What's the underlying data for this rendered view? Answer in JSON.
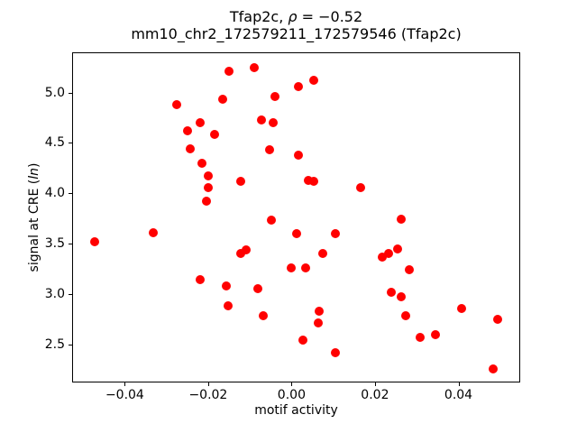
{
  "chart_data": {
    "type": "scatter",
    "title": "Tfap2c, ρ = −0.52",
    "title_parts": {
      "prefix": "Tfap2c, ",
      "rho": "ρ",
      "suffix": " = −0.52"
    },
    "subtitle": "mm10_chr2_172579211_172579546 (Tfap2c)",
    "xlabel": "motif activity",
    "ylabel": "signal at CRE (ln)",
    "ylabel_parts": {
      "prefix": "signal at CRE (",
      "italic": "ln",
      "suffix": ")"
    },
    "marker_color": "#ff0000",
    "marker_size_px": 10,
    "grid": false,
    "legend_position": "none",
    "xlim": [
      -0.0524,
      0.0546
    ],
    "ylim": [
      2.13,
      5.39
    ],
    "x_tick_values": [
      -0.04,
      -0.02,
      0.0,
      0.02,
      0.04
    ],
    "x_tick_labels": [
      "−0.04",
      "−0.02",
      "0.00",
      "0.02",
      "0.04"
    ],
    "y_tick_values": [
      2.5,
      3.0,
      3.5,
      4.0,
      4.5,
      5.0
    ],
    "y_tick_labels": [
      "2.5",
      "3.0",
      "3.5",
      "4.0",
      "4.5",
      "5.0"
    ],
    "points": [
      [
        -0.0151,
        5.21
      ],
      [
        -0.009,
        5.25
      ],
      [
        -0.0166,
        4.93
      ],
      [
        0.0017,
        5.06
      ],
      [
        -0.0039,
        4.96
      ],
      [
        -0.0276,
        4.88
      ],
      [
        -0.0073,
        4.73
      ],
      [
        -0.0045,
        4.7
      ],
      [
        -0.022,
        4.7
      ],
      [
        -0.025,
        4.62
      ],
      [
        -0.0184,
        4.58
      ],
      [
        -0.0243,
        4.44
      ],
      [
        -0.0052,
        4.43
      ],
      [
        0.0017,
        4.38
      ],
      [
        -0.0215,
        4.3
      ],
      [
        -0.0199,
        4.17
      ],
      [
        -0.0199,
        4.06
      ],
      [
        -0.0122,
        4.12
      ],
      [
        -0.0204,
        3.92
      ],
      [
        -0.0048,
        3.73
      ],
      [
        0.0054,
        5.12
      ],
      [
        0.004,
        4.13
      ],
      [
        0.0053,
        4.12
      ],
      [
        0.0165,
        4.06
      ],
      [
        0.0262,
        3.74
      ],
      [
        -0.0472,
        3.52
      ],
      [
        -0.0332,
        3.61
      ],
      [
        -0.0123,
        3.4
      ],
      [
        -0.0108,
        3.44
      ],
      [
        -0.0219,
        3.14
      ],
      [
        -0.0156,
        3.08
      ],
      [
        -0.0082,
        3.05
      ],
      [
        -0.0152,
        2.88
      ],
      [
        -0.0068,
        2.78
      ],
      [
        0.0013,
        3.6
      ],
      [
        0.0106,
        3.6
      ],
      [
        0.0074,
        3.4
      ],
      [
        -0.0001,
        3.26
      ],
      [
        0.0033,
        3.26
      ],
      [
        0.0217,
        3.37
      ],
      [
        0.0233,
        3.4
      ],
      [
        0.0253,
        3.45
      ],
      [
        0.0282,
        3.24
      ],
      [
        0.0238,
        3.02
      ],
      [
        0.0262,
        2.97
      ],
      [
        0.0274,
        2.78
      ],
      [
        0.0065,
        2.83
      ],
      [
        0.0064,
        2.71
      ],
      [
        0.0027,
        2.54
      ],
      [
        0.0106,
        2.42
      ],
      [
        0.0408,
        2.86
      ],
      [
        0.0495,
        2.75
      ],
      [
        0.0308,
        2.57
      ],
      [
        0.0344,
        2.6
      ],
      [
        0.0483,
        2.26
      ]
    ]
  }
}
